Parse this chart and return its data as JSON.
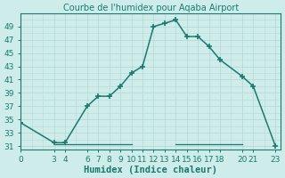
{
  "x": [
    0,
    3,
    4,
    6,
    7,
    8,
    9,
    10,
    11,
    12,
    13,
    14,
    15,
    16,
    17,
    18,
    20,
    21,
    23
  ],
  "y": [
    34.5,
    31.5,
    31.5,
    37,
    38.5,
    38.5,
    40,
    42,
    43,
    49,
    49.5,
    50,
    47.5,
    47.5,
    46,
    44,
    41.5,
    40,
    31
  ],
  "baseline_segments": [
    [
      [
        3,
        10
      ],
      [
        31.3,
        31.3
      ]
    ],
    [
      [
        14,
        20
      ],
      [
        31.3,
        31.3
      ]
    ]
  ],
  "xticks": [
    0,
    3,
    4,
    6,
    7,
    8,
    9,
    10,
    11,
    12,
    13,
    14,
    15,
    16,
    17,
    18,
    20,
    21,
    23
  ],
  "yticks": [
    31,
    33,
    35,
    37,
    39,
    41,
    43,
    45,
    47,
    49
  ],
  "xlim": [
    0,
    23.5
  ],
  "ylim": [
    30.5,
    51
  ],
  "xlabel": "Humidex (Indice chaleur)",
  "title": "Courbe de l'humidex pour Aqaba Airport",
  "line_color": "#1a7a6e",
  "bg_color": "#cdecea",
  "grid_color": "#b8dad8",
  "marker": "+",
  "marker_size": 5,
  "marker_lw": 1.2,
  "line_width": 1.1,
  "xlabel_fontsize": 7.5,
  "tick_fontsize": 6.5,
  "title_fontsize": 7
}
